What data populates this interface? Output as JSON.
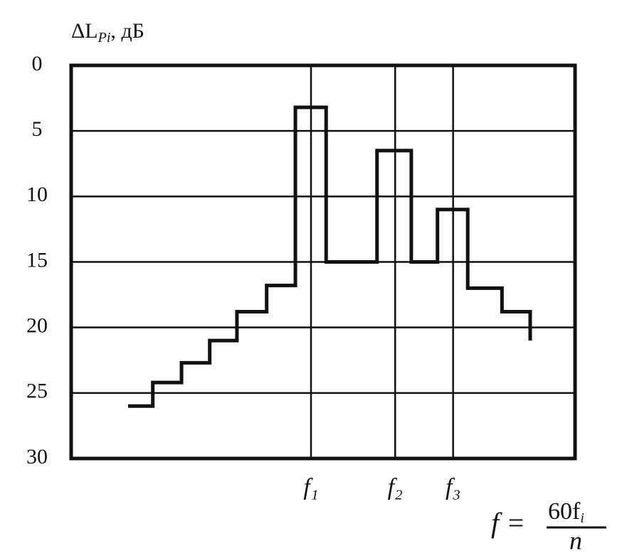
{
  "chart_data": {
    "type": "line",
    "y_label": {
      "main": "ΔL",
      "sub": "Pi",
      "unit": ", дБ"
    },
    "x_label": {
      "lhs": "f =",
      "numerator": "60f",
      "numerator_sub": "i",
      "denominator": "n"
    },
    "xlim": [
      0,
      100
    ],
    "xticks": [
      {
        "value": 47.6,
        "label": "f₁"
      },
      {
        "value": 64.3,
        "label": "f₂"
      },
      {
        "value": 75.8,
        "label": "f₃"
      }
    ],
    "ylim": [
      30,
      0
    ],
    "yticks": [
      0,
      5,
      10,
      15,
      20,
      25,
      30
    ],
    "grid": true,
    "series": [
      {
        "color": "#111111",
        "x": [
          11.3,
          16.2,
          16.2,
          21.9,
          21.9,
          27.5,
          27.5,
          32.9,
          32.9,
          38.8,
          38.8,
          44.5,
          44.5,
          50.6,
          50.6,
          60.7,
          60.7,
          67.5,
          67.5,
          72.7,
          72.7,
          78.7,
          78.7,
          85.5,
          85.5,
          91.1,
          91.1
        ],
        "values": [
          26,
          26,
          24.2,
          24.2,
          22.7,
          22.7,
          21,
          21,
          18.8,
          18.8,
          16.8,
          16.8,
          3.2,
          3.2,
          15,
          15,
          6.5,
          6.5,
          15,
          15,
          11,
          11,
          17,
          17,
          18.8,
          18.8,
          21
        ]
      }
    ]
  }
}
